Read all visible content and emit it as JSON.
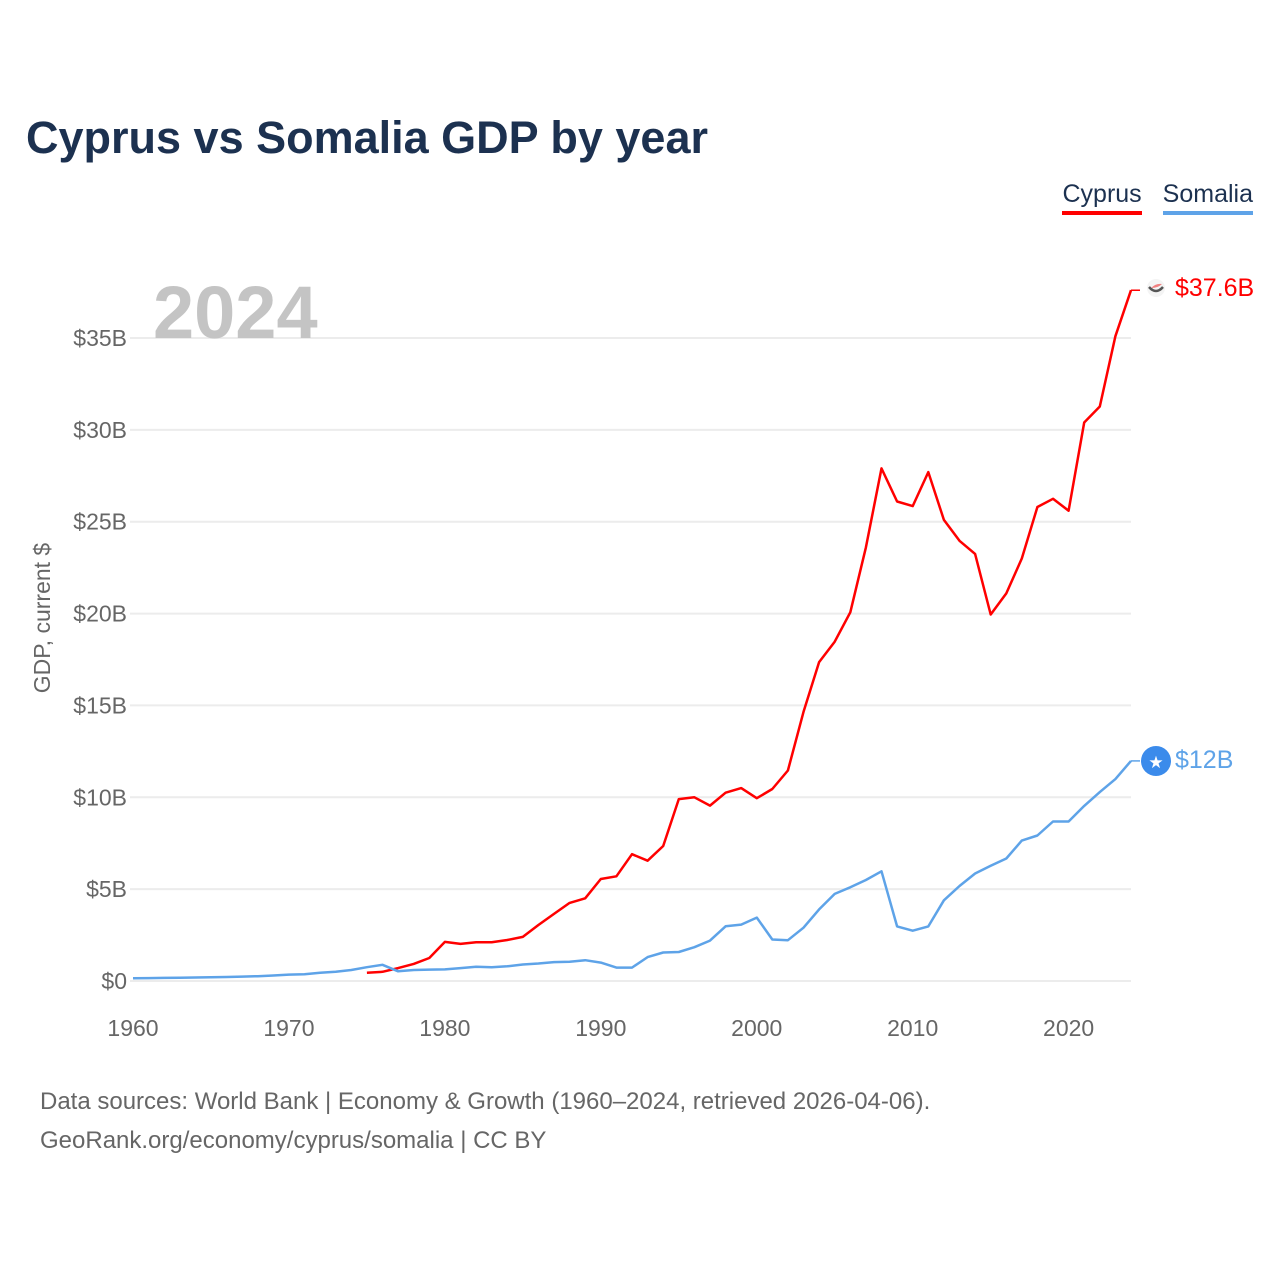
{
  "title": "Cyprus vs Somalia GDP by year",
  "footer": {
    "line1": "Data sources: World Bank | Economy & Growth (1960–2024, retrieved 2026-04-06).",
    "line2": "GeoRank.org/economy/cyprus/somalia | CC BY"
  },
  "chart_data": {
    "type": "line",
    "title": "Cyprus vs Somalia GDP by year",
    "xlabel": "",
    "ylabel": "GDP, current $",
    "year_label": "2024",
    "xlim": [
      1960,
      2024
    ],
    "ylim": [
      0,
      37.6
    ],
    "x_ticks": [
      1960,
      1970,
      1980,
      1990,
      2000,
      2010,
      2020
    ],
    "x_tick_labels": [
      "1960",
      "1970",
      "1980",
      "1990",
      "2000",
      "2010",
      "2020"
    ],
    "y_ticks": [
      0,
      5,
      10,
      15,
      20,
      25,
      30,
      35
    ],
    "y_tick_labels": [
      "$0",
      "$5B",
      "$10B",
      "$15B",
      "$20B",
      "$25B",
      "$30B",
      "$35B"
    ],
    "grid": true,
    "legend_position": "top-right",
    "series": [
      {
        "name": "Cyprus",
        "color": "#ff0000",
        "end_label": "$37.6B",
        "icon": "cyprus-flag-icon",
        "start_year": 1975,
        "values": [
          0.45,
          0.5,
          0.7,
          0.93,
          1.25,
          2.13,
          2.02,
          2.11,
          2.11,
          2.23,
          2.4,
          3.05,
          3.65,
          4.25,
          4.5,
          5.55,
          5.7,
          6.9,
          6.55,
          7.35,
          9.9,
          10.0,
          9.55,
          10.25,
          10.5,
          9.95,
          10.45,
          11.46,
          14.65,
          17.36,
          18.47,
          20.07,
          23.6,
          27.9,
          26.1,
          25.85,
          27.7,
          25.1,
          23.96,
          23.25,
          19.95,
          21.1,
          23.0,
          25.8,
          26.25,
          25.6,
          30.4,
          31.27,
          35.1,
          37.6
        ]
      },
      {
        "name": "Somalia",
        "color": "#5ea3e8",
        "end_label": "$12B",
        "icon": "somalia-flag-icon",
        "start_year": 1960,
        "values": [
          0.15,
          0.16,
          0.17,
          0.18,
          0.19,
          0.2,
          0.22,
          0.24,
          0.26,
          0.3,
          0.35,
          0.37,
          0.45,
          0.5,
          0.6,
          0.75,
          0.88,
          0.53,
          0.6,
          0.62,
          0.63,
          0.7,
          0.78,
          0.75,
          0.8,
          0.9,
          0.95,
          1.03,
          1.05,
          1.13,
          1.0,
          0.73,
          0.73,
          1.3,
          1.55,
          1.58,
          1.84,
          2.2,
          2.98,
          3.07,
          3.45,
          2.26,
          2.22,
          2.9,
          3.9,
          4.74,
          5.1,
          5.5,
          5.97,
          2.97,
          2.74,
          2.97,
          4.39,
          5.17,
          5.85,
          6.27,
          6.67,
          7.64,
          7.92,
          8.68,
          8.68,
          9.53,
          10.28,
          10.99,
          11.98
        ]
      }
    ]
  }
}
